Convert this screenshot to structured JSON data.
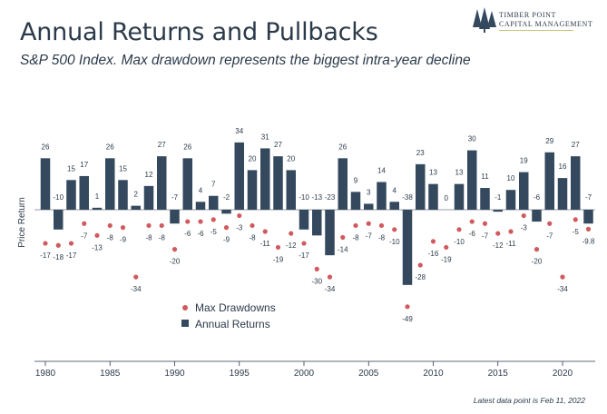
{
  "header": {
    "title": "Annual Returns and Pullbacks",
    "subtitle": "S&P 500 Index. Max drawdown represents the biggest intra-year decline",
    "logo_line1": "Timber Point",
    "logo_line2": "Capital Management"
  },
  "footnote": "Latest data point is Feb 11, 2022",
  "colors": {
    "bar": "#34495e",
    "dot": "#d05a5e",
    "text": "#2b3a4a"
  },
  "chart_data": {
    "type": "bar",
    "title": "Annual Returns and Pullbacks",
    "ylabel": "Price Return",
    "ylim": [
      -55,
      38
    ],
    "x_ticks": [
      1980,
      1985,
      1990,
      1995,
      2000,
      2005,
      2010,
      2015,
      2020
    ],
    "legend_position": "center",
    "categories": [
      1980,
      1981,
      1982,
      1983,
      1984,
      1985,
      1986,
      1987,
      1988,
      1989,
      1990,
      1991,
      1992,
      1993,
      1994,
      1995,
      1996,
      1997,
      1998,
      1999,
      2000,
      2001,
      2002,
      2003,
      2004,
      2005,
      2006,
      2007,
      2008,
      2009,
      2010,
      2011,
      2012,
      2013,
      2014,
      2015,
      2016,
      2017,
      2018,
      2019,
      2020,
      2021,
      2022
    ],
    "series": [
      {
        "name": "Annual Returns",
        "kind": "bar",
        "values": [
          26,
          -10,
          15,
          17,
          1,
          26,
          15,
          2,
          12,
          27,
          -7,
          26,
          4,
          7,
          -2,
          34,
          20,
          31,
          27,
          20,
          -10,
          -13,
          -23,
          26,
          9,
          3,
          14,
          4,
          -38,
          23,
          13,
          0,
          13,
          30,
          11,
          -1,
          10,
          19,
          -6,
          29,
          16,
          27,
          -7
        ],
        "labels": [
          "26",
          "-10",
          "15",
          "17",
          "1",
          "26",
          "15",
          "2",
          "12",
          "27",
          "-7",
          "26",
          "4",
          "7",
          "-2",
          "34",
          "20",
          "31",
          "27",
          "20",
          "-10",
          "-13",
          "-23",
          "26",
          "9",
          "3",
          "14",
          "4",
          "-38",
          "23",
          "13",
          "0",
          "13",
          "30",
          "11",
          "-1",
          "10",
          "19",
          "-6",
          "29",
          "16",
          "27",
          "-7"
        ]
      },
      {
        "name": "Max Drawdowns",
        "kind": "dot",
        "values": [
          -17,
          -18,
          -17,
          -7,
          -13,
          -8,
          -9,
          -34,
          -8,
          -8,
          -20,
          -6,
          -6,
          -5,
          -9,
          -3,
          -8,
          -11,
          -19,
          -12,
          -17,
          -30,
          -34,
          -14,
          -8,
          -7,
          -8,
          -10,
          -49,
          -28,
          -16,
          -19,
          -10,
          -6,
          -7,
          -12,
          -11,
          -3,
          -20,
          -7,
          -34,
          -5,
          -9.8
        ],
        "labels": [
          "-17",
          "-18",
          "-17",
          "-7",
          "-13",
          "-8",
          "-9",
          "-34",
          "-8",
          "-8",
          "-20",
          "-6",
          "-6",
          "-5",
          "-9",
          "-3",
          "-8",
          "-11",
          "-19",
          "-12",
          "-17",
          "-30",
          "-34",
          "-14",
          "-8",
          "-7",
          "-8",
          "-10",
          "-49",
          "-28",
          "-16",
          "-19",
          "-10",
          "-6",
          "-7",
          "-12",
          "-11",
          "-3",
          "-20",
          "-7",
          "-34",
          "-5",
          "-9.8"
        ]
      }
    ]
  }
}
